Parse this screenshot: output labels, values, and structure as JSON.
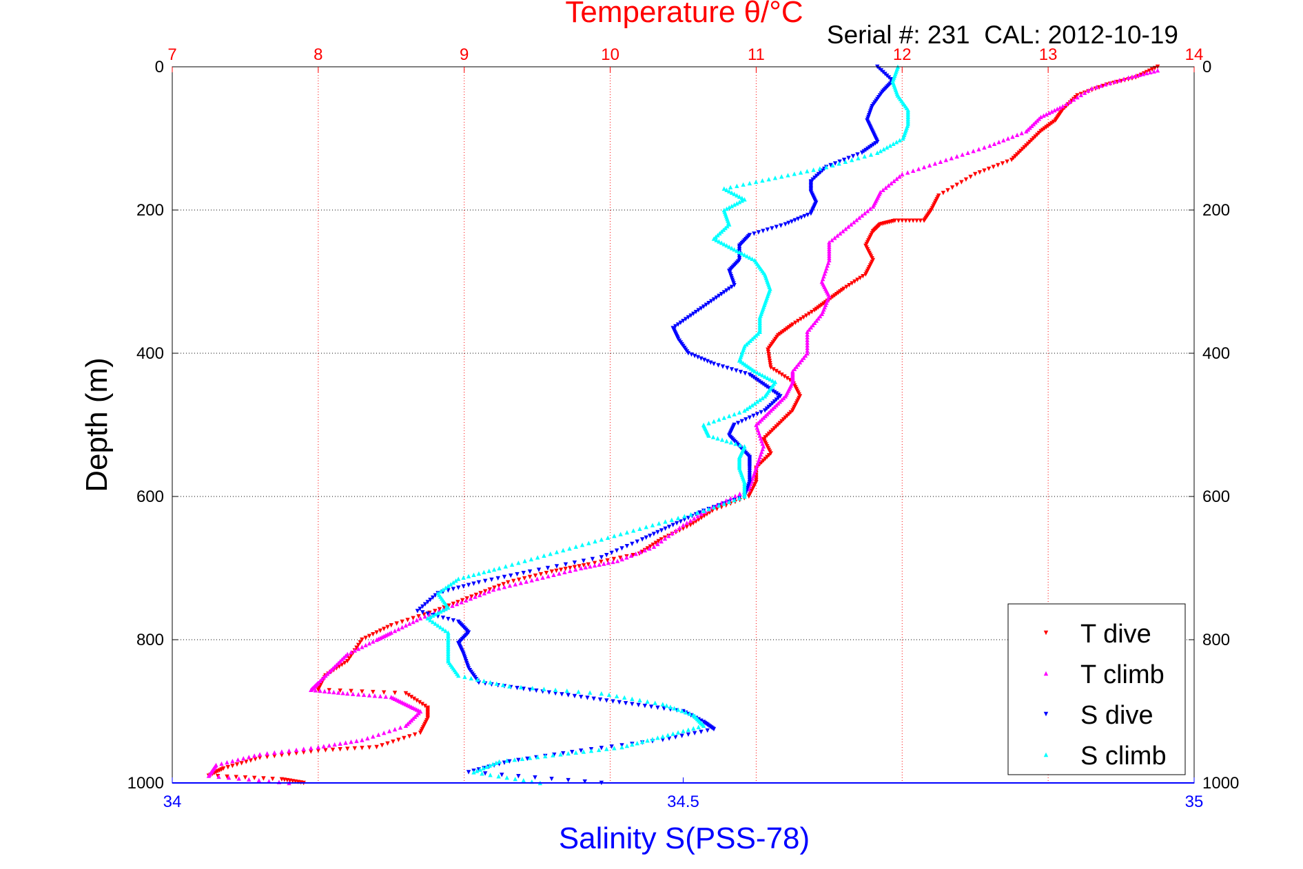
{
  "chart_data": {
    "type": "scatter",
    "title": "Temperature θ/°C",
    "subtitle": "Serial #: 231  CAL: 2012-10-19",
    "ylabel": "Depth (m)",
    "xlabel_bottom": "Salinity S(PSS-78)",
    "x_top": {
      "label": "Temperature θ/°C",
      "lim": [
        7,
        14
      ],
      "ticks": [
        "7",
        "8",
        "9",
        "10",
        "11",
        "12",
        "13",
        "14"
      ],
      "color": "#ff0000"
    },
    "x_bottom": {
      "label": "Salinity S(PSS-78)",
      "lim": [
        34,
        35
      ],
      "ticks": [
        "34",
        "34.5",
        "35"
      ],
      "color": "#0000ff"
    },
    "y": {
      "lim": [
        0,
        1000
      ],
      "reversed": true,
      "ticks": [
        "0",
        "200",
        "400",
        "600",
        "800",
        "1000"
      ]
    },
    "grid": true,
    "legend": {
      "placement": "bottom-right"
    },
    "series": [
      {
        "name": "T dive",
        "axis": "temperature",
        "color": "#ff0000",
        "marker": "triangle-down",
        "points": [
          [
            13.75,
            0
          ],
          [
            13.6,
            15
          ],
          [
            13.4,
            25
          ],
          [
            13.2,
            40
          ],
          [
            13.1,
            60
          ],
          [
            13.05,
            75
          ],
          [
            12.95,
            90
          ],
          [
            12.85,
            110
          ],
          [
            12.75,
            130
          ],
          [
            12.5,
            150
          ],
          [
            12.25,
            180
          ],
          [
            12.2,
            200
          ],
          [
            12.15,
            215
          ],
          [
            11.95,
            215
          ],
          [
            11.85,
            220
          ],
          [
            11.8,
            230
          ],
          [
            11.75,
            250
          ],
          [
            11.8,
            270
          ],
          [
            11.75,
            290
          ],
          [
            11.6,
            310
          ],
          [
            11.5,
            325
          ],
          [
            11.4,
            340
          ],
          [
            11.25,
            360
          ],
          [
            11.15,
            375
          ],
          [
            11.08,
            395
          ],
          [
            11.1,
            420
          ],
          [
            11.25,
            440
          ],
          [
            11.3,
            460
          ],
          [
            11.25,
            480
          ],
          [
            11.15,
            500
          ],
          [
            11.05,
            520
          ],
          [
            11.1,
            540
          ],
          [
            11.0,
            560
          ],
          [
            11.0,
            580
          ],
          [
            10.95,
            600
          ],
          [
            10.7,
            620
          ],
          [
            10.55,
            640
          ],
          [
            10.35,
            660
          ],
          [
            10.2,
            680
          ],
          [
            9.85,
            695
          ],
          [
            9.6,
            705
          ],
          [
            9.3,
            720
          ],
          [
            9.05,
            740
          ],
          [
            8.8,
            760
          ],
          [
            8.5,
            780
          ],
          [
            8.3,
            800
          ],
          [
            8.2,
            830
          ],
          [
            8.05,
            850
          ],
          [
            8.0,
            870
          ],
          [
            8.6,
            875
          ],
          [
            8.75,
            895
          ],
          [
            8.75,
            910
          ],
          [
            8.7,
            930
          ],
          [
            8.4,
            950
          ],
          [
            8.0,
            955
          ],
          [
            7.6,
            965
          ],
          [
            7.35,
            980
          ],
          [
            7.25,
            990
          ],
          [
            7.75,
            995
          ],
          [
            7.9,
            1000
          ]
        ]
      },
      {
        "name": "T climb",
        "axis": "temperature",
        "color": "#ff00ff",
        "marker": "triangle-up",
        "points": [
          [
            13.75,
            5
          ],
          [
            13.55,
            15
          ],
          [
            13.3,
            30
          ],
          [
            13.1,
            55
          ],
          [
            12.95,
            70
          ],
          [
            12.85,
            90
          ],
          [
            12.6,
            110
          ],
          [
            12.3,
            130
          ],
          [
            12.0,
            150
          ],
          [
            11.85,
            175
          ],
          [
            11.8,
            195
          ],
          [
            11.65,
            220
          ],
          [
            11.5,
            245
          ],
          [
            11.5,
            270
          ],
          [
            11.45,
            300
          ],
          [
            11.5,
            320
          ],
          [
            11.45,
            345
          ],
          [
            11.35,
            370
          ],
          [
            11.35,
            400
          ],
          [
            11.25,
            425
          ],
          [
            11.25,
            440
          ],
          [
            11.2,
            460
          ],
          [
            11.1,
            480
          ],
          [
            11.0,
            500
          ],
          [
            11.05,
            530
          ],
          [
            11.0,
            560
          ],
          [
            10.95,
            590
          ],
          [
            10.7,
            615
          ],
          [
            10.5,
            640
          ],
          [
            10.3,
            670
          ],
          [
            10.05,
            690
          ],
          [
            9.8,
            700
          ],
          [
            9.5,
            715
          ],
          [
            9.2,
            730
          ],
          [
            8.95,
            750
          ],
          [
            8.7,
            770
          ],
          [
            8.5,
            790
          ],
          [
            8.4,
            800
          ],
          [
            8.2,
            820
          ],
          [
            8.1,
            840
          ],
          [
            8.0,
            860
          ],
          [
            7.95,
            870
          ],
          [
            8.2,
            875
          ],
          [
            8.5,
            880
          ],
          [
            8.6,
            890
          ],
          [
            8.7,
            900
          ],
          [
            8.6,
            920
          ],
          [
            8.3,
            940
          ],
          [
            8.0,
            950
          ],
          [
            7.6,
            960
          ],
          [
            7.3,
            975
          ],
          [
            7.25,
            990
          ],
          [
            7.8,
            1000
          ]
        ]
      },
      {
        "name": "S dive",
        "axis": "salinity",
        "color": "#0000ff",
        "marker": "triangle-down",
        "points": [
          [
            34.69,
            0
          ],
          [
            34.705,
            20
          ],
          [
            34.695,
            35
          ],
          [
            34.685,
            55
          ],
          [
            34.68,
            75
          ],
          [
            34.685,
            90
          ],
          [
            34.69,
            105
          ],
          [
            34.675,
            120
          ],
          [
            34.64,
            140
          ],
          [
            34.625,
            160
          ],
          [
            34.625,
            175
          ],
          [
            34.63,
            190
          ],
          [
            34.625,
            205
          ],
          [
            34.6,
            220
          ],
          [
            34.565,
            235
          ],
          [
            34.555,
            250
          ],
          [
            34.555,
            270
          ],
          [
            34.545,
            285
          ],
          [
            34.55,
            305
          ],
          [
            34.53,
            325
          ],
          [
            34.51,
            345
          ],
          [
            34.49,
            365
          ],
          [
            34.495,
            380
          ],
          [
            34.505,
            400
          ],
          [
            34.53,
            415
          ],
          [
            34.565,
            430
          ],
          [
            34.58,
            445
          ],
          [
            34.595,
            460
          ],
          [
            34.58,
            480
          ],
          [
            34.55,
            500
          ],
          [
            34.545,
            515
          ],
          [
            34.555,
            530
          ],
          [
            34.565,
            545
          ],
          [
            34.565,
            560
          ],
          [
            34.565,
            580
          ],
          [
            34.56,
            600
          ],
          [
            34.52,
            620
          ],
          [
            34.49,
            640
          ],
          [
            34.46,
            660
          ],
          [
            34.42,
            685
          ],
          [
            34.35,
            705
          ],
          [
            34.3,
            720
          ],
          [
            34.26,
            735
          ],
          [
            34.24,
            760
          ],
          [
            34.28,
            775
          ],
          [
            34.29,
            790
          ],
          [
            34.28,
            805
          ],
          [
            34.285,
            820
          ],
          [
            34.29,
            840
          ],
          [
            34.3,
            860
          ],
          [
            34.35,
            870
          ],
          [
            34.4,
            880
          ],
          [
            34.45,
            890
          ],
          [
            34.5,
            900
          ],
          [
            34.52,
            915
          ],
          [
            34.53,
            925
          ],
          [
            34.48,
            940
          ],
          [
            34.4,
            955
          ],
          [
            34.33,
            970
          ],
          [
            34.29,
            985
          ],
          [
            34.42,
            1000
          ]
        ]
      },
      {
        "name": "S climb",
        "axis": "salinity",
        "color": "#00ffff",
        "marker": "triangle-up",
        "points": [
          [
            34.71,
            0
          ],
          [
            34.705,
            20
          ],
          [
            34.71,
            40
          ],
          [
            34.72,
            60
          ],
          [
            34.72,
            80
          ],
          [
            34.715,
            100
          ],
          [
            34.69,
            120
          ],
          [
            34.64,
            140
          ],
          [
            34.59,
            155
          ],
          [
            34.54,
            170
          ],
          [
            34.56,
            185
          ],
          [
            34.54,
            200
          ],
          [
            34.545,
            220
          ],
          [
            34.53,
            240
          ],
          [
            34.55,
            255
          ],
          [
            34.57,
            270
          ],
          [
            34.58,
            290
          ],
          [
            34.585,
            310
          ],
          [
            34.58,
            330
          ],
          [
            34.575,
            350
          ],
          [
            34.575,
            370
          ],
          [
            34.56,
            390
          ],
          [
            34.555,
            410
          ],
          [
            34.57,
            425
          ],
          [
            34.59,
            440
          ],
          [
            34.58,
            460
          ],
          [
            34.56,
            480
          ],
          [
            34.52,
            500
          ],
          [
            34.525,
            515
          ],
          [
            34.56,
            530
          ],
          [
            34.555,
            545
          ],
          [
            34.555,
            560
          ],
          [
            34.56,
            580
          ],
          [
            34.56,
            600
          ],
          [
            34.52,
            620
          ],
          [
            34.47,
            640
          ],
          [
            34.42,
            660
          ],
          [
            34.37,
            680
          ],
          [
            34.32,
            700
          ],
          [
            34.28,
            715
          ],
          [
            34.26,
            735
          ],
          [
            34.27,
            755
          ],
          [
            34.25,
            770
          ],
          [
            34.27,
            790
          ],
          [
            34.27,
            810
          ],
          [
            34.27,
            830
          ],
          [
            34.28,
            850
          ],
          [
            34.33,
            865
          ],
          [
            34.42,
            875
          ],
          [
            34.48,
            890
          ],
          [
            34.51,
            905
          ],
          [
            34.52,
            920
          ],
          [
            34.48,
            935
          ],
          [
            34.44,
            950
          ],
          [
            34.38,
            960
          ],
          [
            34.32,
            970
          ],
          [
            34.295,
            985
          ],
          [
            34.36,
            1000
          ]
        ]
      }
    ]
  }
}
